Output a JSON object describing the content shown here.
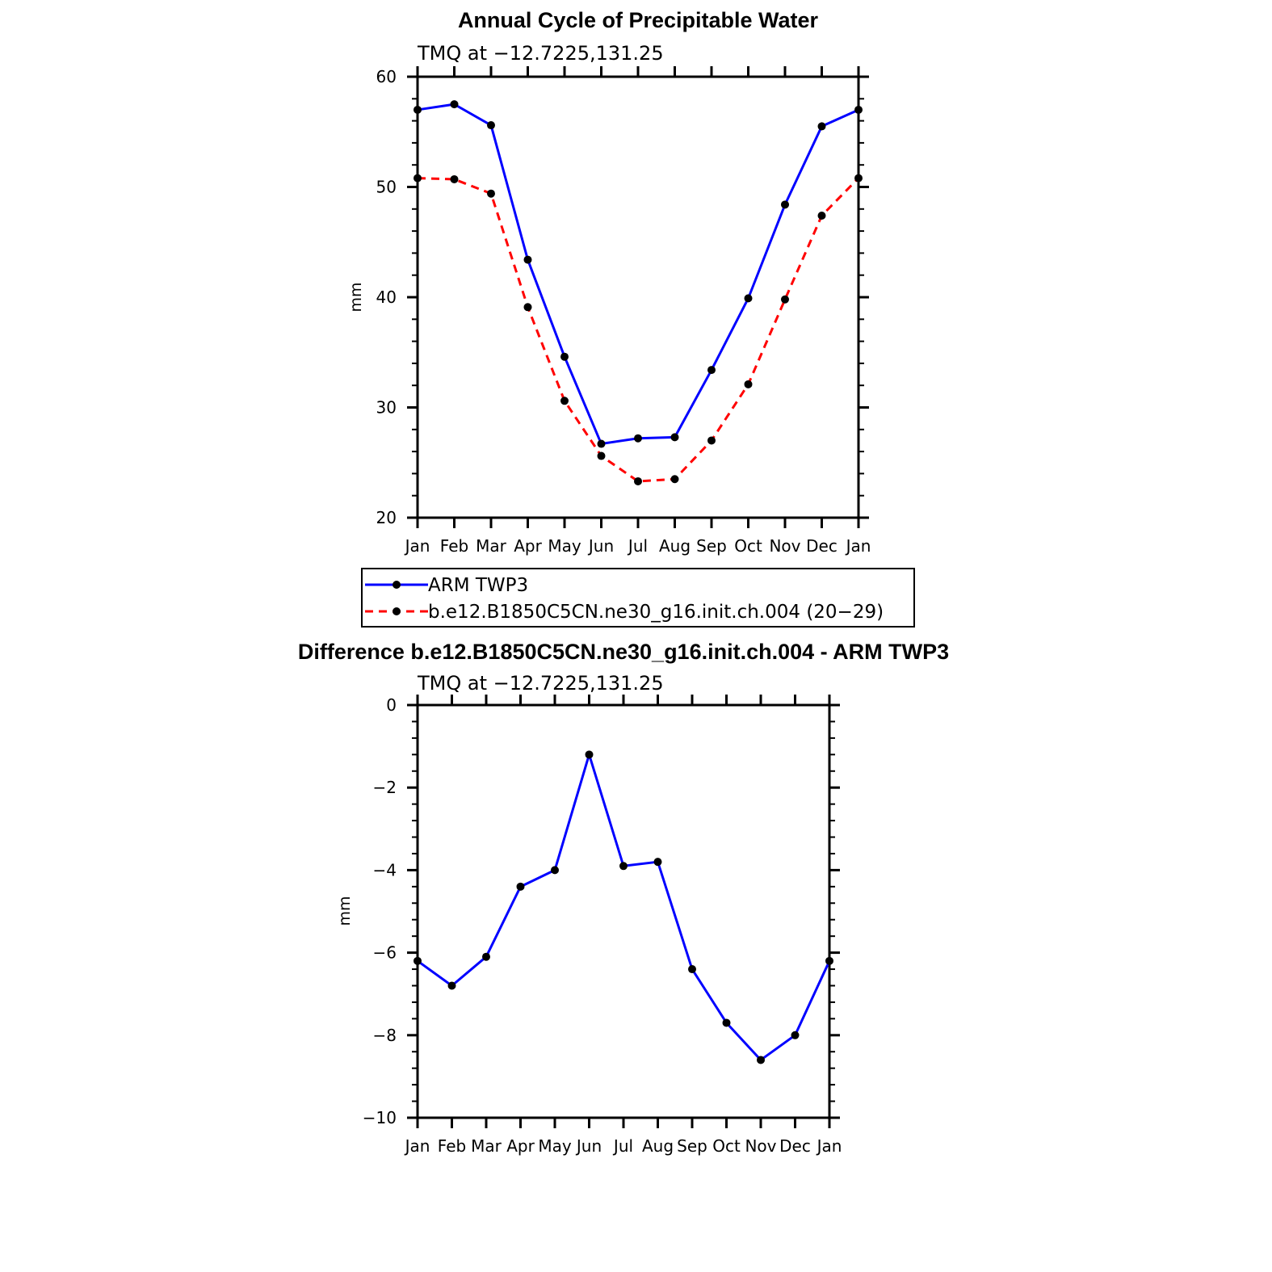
{
  "chart_data": [
    {
      "type": "line",
      "title": "Annual Cycle of Precipitable Water",
      "subtitle": "TMQ at −12.7225,131.25",
      "ylabel": "mm",
      "xlabel": "",
      "ylim": [
        20,
        60
      ],
      "yticks": [
        20,
        30,
        40,
        50,
        60
      ],
      "categories": [
        "Jan",
        "Feb",
        "Mar",
        "Apr",
        "May",
        "Jun",
        "Jul",
        "Aug",
        "Sep",
        "Oct",
        "Nov",
        "Dec",
        "Jan"
      ],
      "series": [
        {
          "name": "ARM TWP3",
          "color": "#0000ff",
          "dash": "solid",
          "values": [
            57.0,
            57.5,
            55.6,
            43.4,
            34.6,
            26.7,
            27.2,
            27.3,
            33.4,
            39.9,
            48.4,
            55.5,
            57.0
          ]
        },
        {
          "name": "b.e12.B1850C5CN.ne30_g16.init.ch.004 (20−29)",
          "color": "#ff0000",
          "dash": "dashed",
          "values": [
            50.8,
            50.7,
            49.4,
            39.1,
            30.6,
            25.6,
            23.3,
            23.5,
            27.0,
            32.1,
            39.8,
            47.4,
            50.8
          ]
        }
      ],
      "legend": "below"
    },
    {
      "type": "line",
      "title": "Difference b.e12.B1850C5CN.ne30_g16.init.ch.004 - ARM TWP3",
      "subtitle": "TMQ at −12.7225,131.25",
      "ylabel": "mm",
      "xlabel": "",
      "ylim": [
        -10,
        0
      ],
      "yticks": [
        -10,
        -8,
        -6,
        -4,
        -2,
        0
      ],
      "ytick_labels": [
        "−10",
        "−8",
        "−6",
        "−4",
        "−2",
        "0"
      ],
      "categories": [
        "Jan",
        "Feb",
        "Mar",
        "Apr",
        "May",
        "Jun",
        "Jul",
        "Aug",
        "Sep",
        "Oct",
        "Nov",
        "Dec",
        "Jan"
      ],
      "series": [
        {
          "color": "#0000ff",
          "dash": "solid",
          "values": [
            -6.2,
            -6.8,
            -6.1,
            -4.4,
            -4.0,
            -1.2,
            -3.9,
            -3.8,
            -6.4,
            -7.7,
            -8.6,
            -8.0,
            -6.2
          ]
        }
      ]
    }
  ]
}
